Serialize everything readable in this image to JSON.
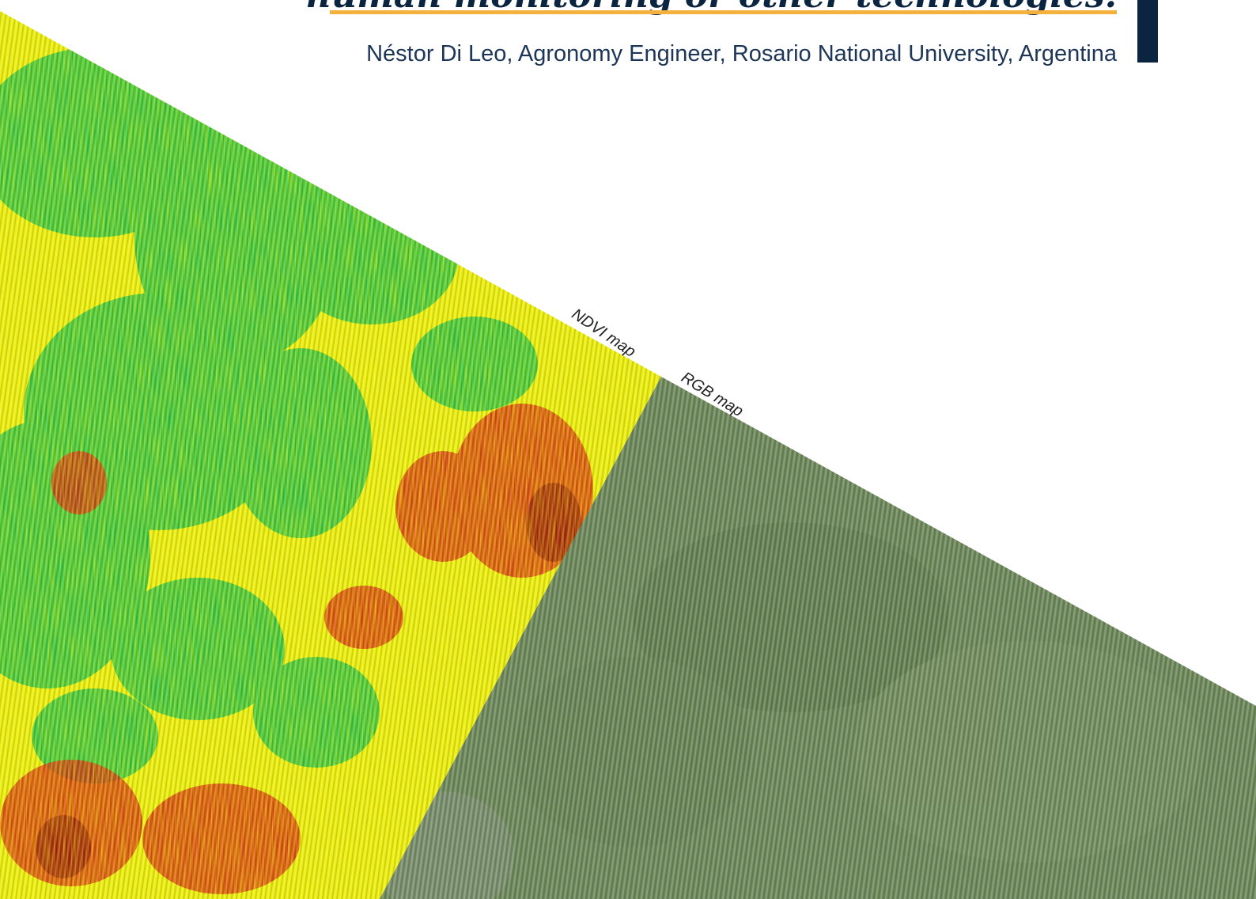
{
  "quote": {
    "text": "human monitoring or other technologies."
  },
  "author": {
    "text": "Néstor Di Leo, Agronomy Engineer, Rosario National University, Argentina"
  },
  "maps": {
    "ndvi_label": "NDVI map",
    "rgb_label": "RGB map"
  },
  "colors": {
    "navy": "#0b2540",
    "accent": "#f5b13d",
    "ndvi_green": "#1cbf4c",
    "ndvi_yellow": "#f2f000",
    "ndvi_red": "#d42a12",
    "rgb_green": "#6f8a5c"
  }
}
